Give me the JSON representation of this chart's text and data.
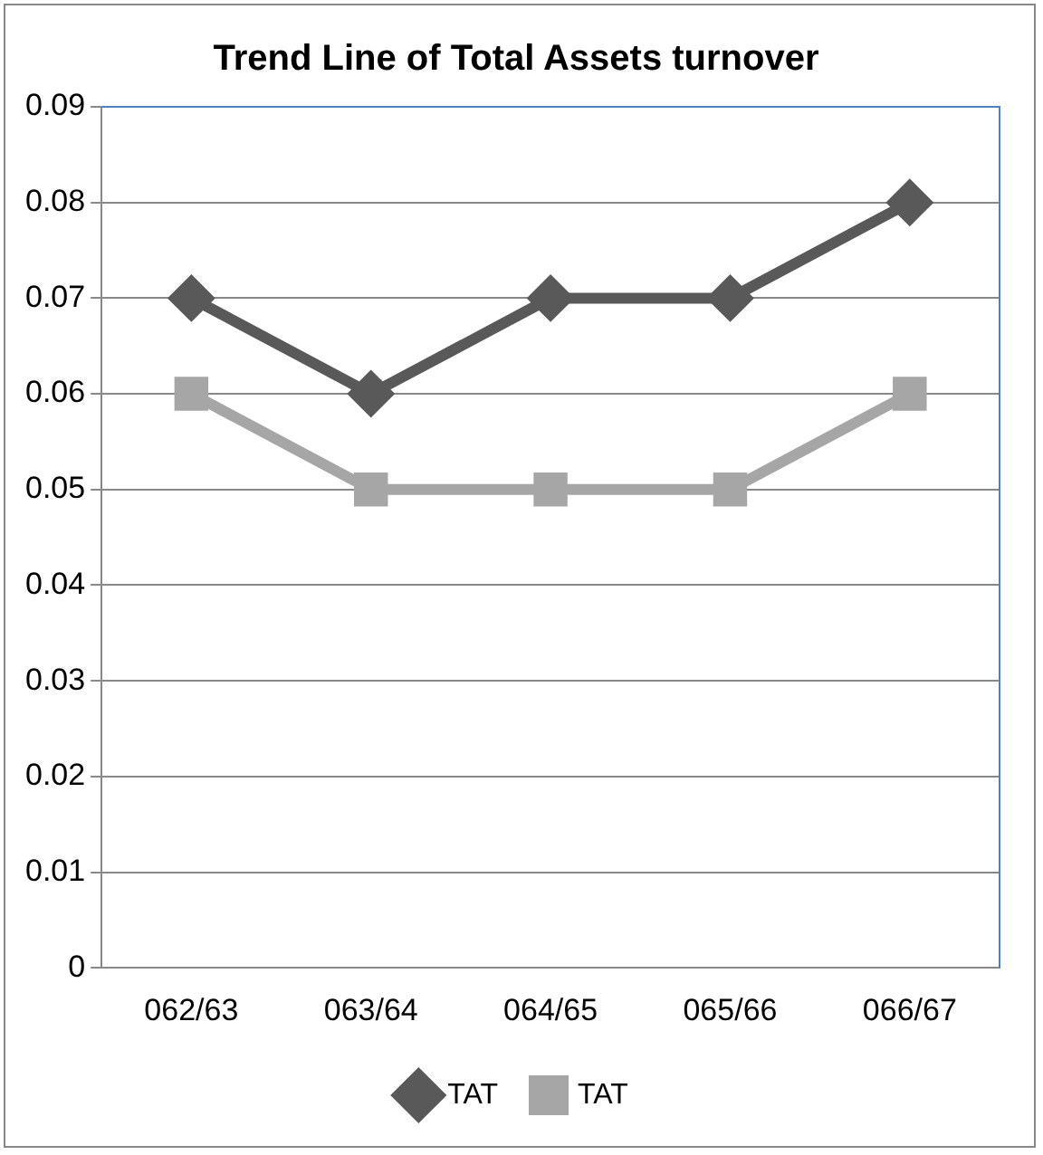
{
  "chart_data": {
    "type": "line",
    "title": "Trend Line of Total Assets turnover",
    "categories": [
      "062/63",
      "063/64",
      "064/65",
      "065/66",
      "066/67"
    ],
    "series": [
      {
        "name": "TAT",
        "color": "#595959",
        "marker": "diamond",
        "values": [
          0.07,
          0.06,
          0.07,
          0.07,
          0.08
        ]
      },
      {
        "name": "TAT",
        "color": "#a6a6a6",
        "marker": "square",
        "values": [
          0.06,
          0.05,
          0.05,
          0.05,
          0.06
        ]
      }
    ],
    "ylim": [
      0,
      0.09
    ],
    "yticks": [
      0,
      0.01,
      0.02,
      0.03,
      0.04,
      0.05,
      0.06,
      0.07,
      0.08,
      0.09
    ],
    "grid": "y",
    "legend": "bottom",
    "line_style": "solid"
  }
}
